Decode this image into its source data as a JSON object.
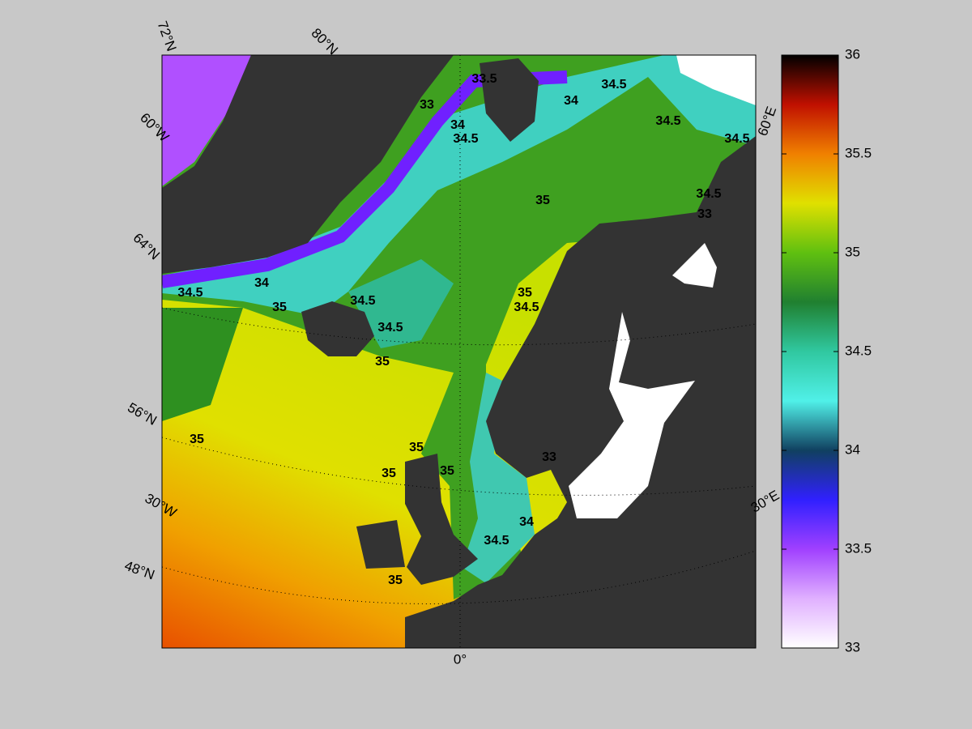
{
  "map": {
    "graticule_labels": [
      "72°N",
      "80°N",
      "60°W",
      "64°N",
      "56°N",
      "30°W",
      "48°N",
      "0°",
      "30°E",
      "60°E"
    ],
    "contour_labels": [
      33.5,
      33,
      34,
      34.5,
      34,
      34.5,
      34.5,
      35,
      34.5,
      34.5,
      33,
      34.5,
      34,
      35,
      34.5,
      34.5,
      35,
      35,
      34.5,
      35,
      35,
      35,
      35,
      33,
      34,
      34.5,
      35
    ]
  },
  "colorbar": {
    "lim": [
      33,
      36
    ],
    "ticks": [
      33,
      33.5,
      34,
      34.5,
      35,
      35.5,
      36
    ],
    "colors": [
      "#ffffff",
      "#e0b0ff",
      "#a040ff",
      "#3020ff",
      "#104060",
      "#50f0e8",
      "#30c8a0",
      "#208030",
      "#60c010",
      "#e0e000",
      "#f08000",
      "#c01000",
      "#000000"
    ]
  }
}
